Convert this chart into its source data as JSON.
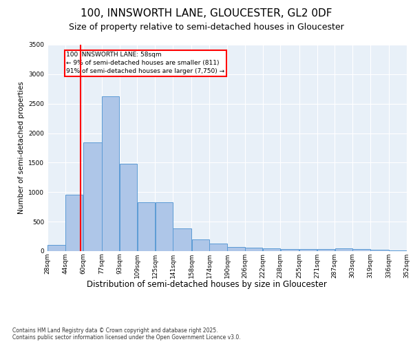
{
  "title1": "100, INNSWORTH LANE, GLOUCESTER, GL2 0DF",
  "title2": "Size of property relative to semi-detached houses in Gloucester",
  "xlabel": "Distribution of semi-detached houses by size in Gloucester",
  "ylabel": "Number of semi-detached properties",
  "footnote": "Contains HM Land Registry data © Crown copyright and database right 2025.\nContains public sector information licensed under the Open Government Licence v3.0.",
  "annotation_title": "100 INNSWORTH LANE: 58sqm",
  "annotation_line2": "← 9% of semi-detached houses are smaller (811)",
  "annotation_line3": "91% of semi-detached houses are larger (7,750) →",
  "property_sqm": 58,
  "bar_left_edges": [
    28,
    44,
    60,
    77,
    93,
    109,
    125,
    141,
    158,
    174,
    190,
    206,
    222,
    238,
    255,
    271,
    287,
    303,
    319,
    336
  ],
  "bar_widths": [
    16,
    16,
    17,
    16,
    16,
    16,
    16,
    17,
    16,
    16,
    16,
    16,
    16,
    17,
    16,
    16,
    16,
    16,
    17,
    16
  ],
  "bar_heights": [
    100,
    960,
    1840,
    2630,
    1480,
    830,
    830,
    380,
    200,
    130,
    70,
    60,
    50,
    40,
    40,
    40,
    50,
    30,
    20,
    10
  ],
  "bar_color": "#aec6e8",
  "bar_edge_color": "#5b9bd5",
  "background_color": "#e8f0f8",
  "ylim": [
    0,
    3500
  ],
  "yticks": [
    0,
    500,
    1000,
    1500,
    2000,
    2500,
    3000,
    3500
  ],
  "tick_labels": [
    "28sqm",
    "44sqm",
    "60sqm",
    "77sqm",
    "93sqm",
    "109sqm",
    "125sqm",
    "141sqm",
    "158sqm",
    "174sqm",
    "190sqm",
    "206sqm",
    "222sqm",
    "238sqm",
    "255sqm",
    "271sqm",
    "287sqm",
    "303sqm",
    "319sqm",
    "336sqm",
    "352sqm"
  ],
  "title1_fontsize": 11,
  "title2_fontsize": 9,
  "ylabel_fontsize": 7.5,
  "xlabel_fontsize": 8.5,
  "tick_fontsize": 6.5,
  "footnote_fontsize": 5.5,
  "annotation_fontsize": 6.5
}
